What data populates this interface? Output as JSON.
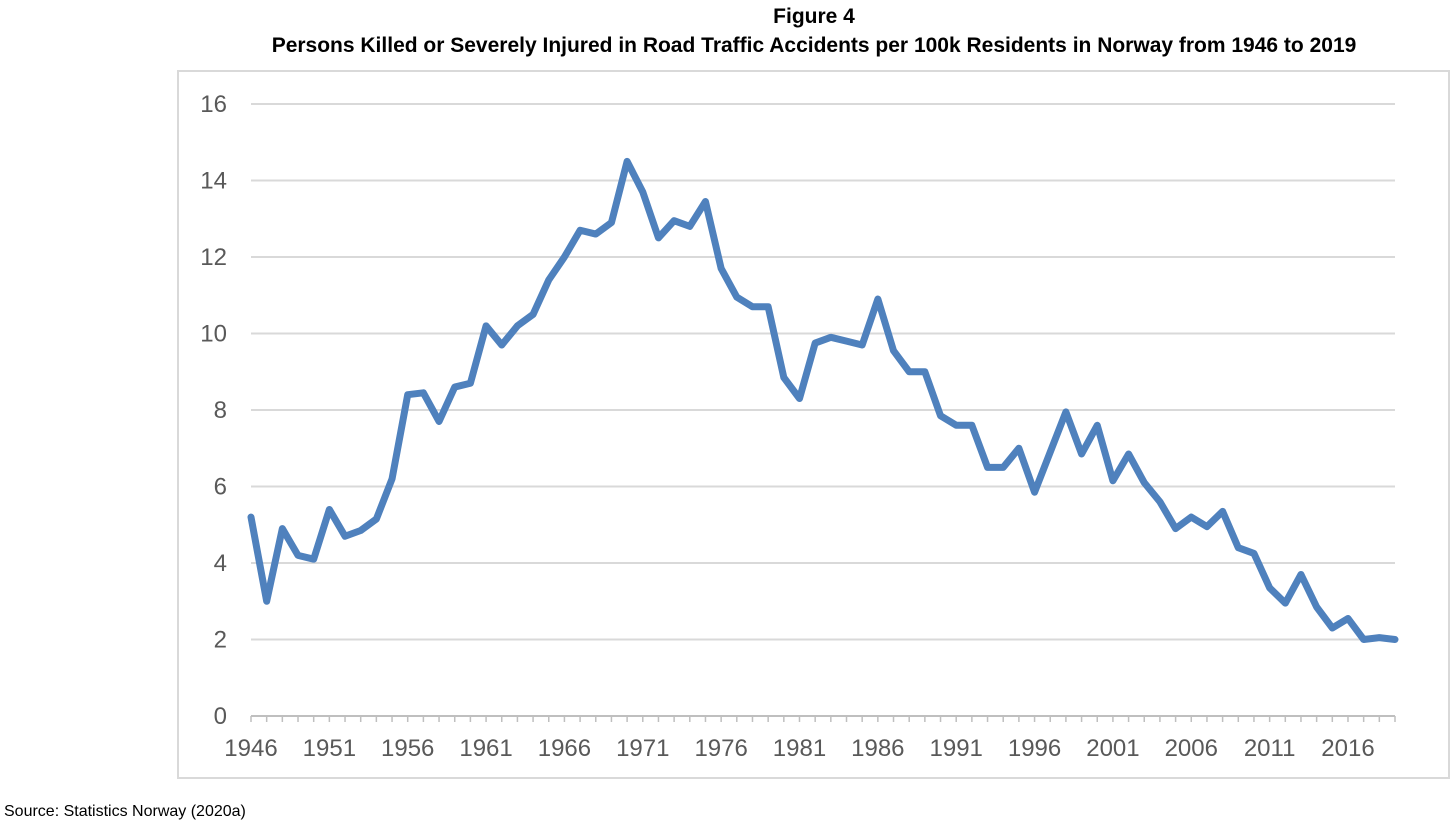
{
  "figure_label": "Figure 4",
  "chart_data": {
    "type": "line",
    "title": "Persons Killed or Severely Injured in Road Traffic Accidents per 100k Residents in Norway from 1946 to 2019",
    "xlabel": "",
    "ylabel": "",
    "ylim": [
      0,
      16
    ],
    "xlim": [
      1946,
      2019
    ],
    "y_ticks": [
      "0",
      "2",
      "4",
      "6",
      "8",
      "10",
      "12",
      "14",
      "16"
    ],
    "x_ticks": [
      "1946",
      "1951",
      "1956",
      "1961",
      "1966",
      "1971",
      "1976",
      "1981",
      "1986",
      "1991",
      "1996",
      "2001",
      "2006",
      "2011",
      "2016"
    ],
    "grid": true,
    "legend": "none",
    "series": [
      {
        "color": "#4f81bd",
        "x": [
          1946,
          1947,
          1948,
          1949,
          1950,
          1951,
          1952,
          1953,
          1954,
          1955,
          1956,
          1957,
          1958,
          1959,
          1960,
          1961,
          1962,
          1963,
          1964,
          1965,
          1966,
          1967,
          1968,
          1969,
          1970,
          1971,
          1972,
          1973,
          1974,
          1975,
          1976,
          1977,
          1978,
          1979,
          1980,
          1981,
          1982,
          1983,
          1984,
          1985,
          1986,
          1987,
          1988,
          1989,
          1990,
          1991,
          1992,
          1993,
          1994,
          1995,
          1996,
          1997,
          1998,
          1999,
          2000,
          2001,
          2002,
          2003,
          2004,
          2005,
          2006,
          2007,
          2008,
          2009,
          2010,
          2011,
          2012,
          2013,
          2014,
          2015,
          2016,
          2017,
          2018,
          2019
        ],
        "values": [
          5.2,
          3.0,
          4.9,
          4.2,
          4.1,
          5.4,
          4.7,
          4.85,
          5.15,
          6.2,
          8.4,
          8.45,
          7.7,
          8.6,
          8.7,
          10.2,
          9.7,
          10.2,
          10.5,
          11.4,
          12.0,
          12.7,
          12.6,
          12.9,
          14.5,
          13.7,
          12.5,
          12.95,
          12.8,
          13.45,
          11.7,
          10.95,
          10.7,
          10.7,
          8.85,
          8.3,
          9.75,
          9.9,
          9.8,
          9.7,
          10.9,
          9.55,
          9.0,
          9.0,
          7.85,
          7.6,
          7.6,
          6.5,
          6.5,
          7.0,
          5.85,
          6.9,
          7.95,
          6.85,
          7.6,
          6.15,
          6.85,
          6.1,
          5.6,
          4.9,
          5.2,
          4.95,
          5.35,
          4.4,
          4.25,
          3.35,
          2.95,
          3.7,
          2.85,
          2.3,
          2.55,
          2.0,
          2.05,
          2.0
        ]
      }
    ]
  },
  "source": "Source: Statistics Norway (2020a)"
}
